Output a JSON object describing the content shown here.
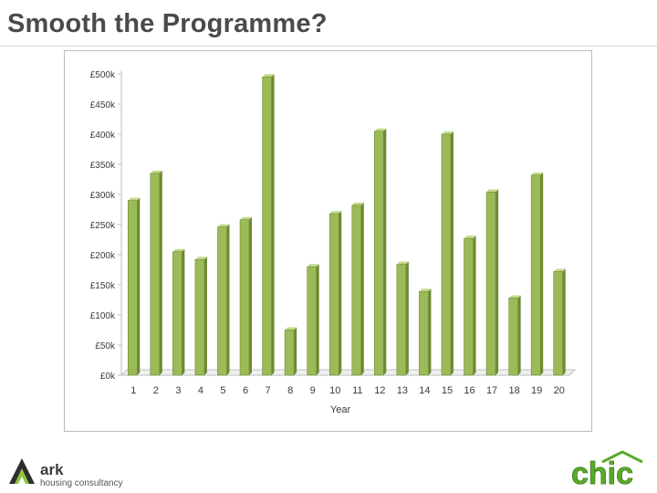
{
  "slide": {
    "title": "Smooth the Programme?"
  },
  "logos": {
    "left_name": "ark",
    "left_tagline": "housing consultancy",
    "right_name": "chic"
  },
  "colors": {
    "bar": "#9bbb59",
    "bar_dark": "#6e8a32",
    "bar_top": "#c3d98b",
    "axis": "#bfbfbf",
    "text": "#3a3a3a",
    "logo_green": "#5aaa2a"
  },
  "chart_data": {
    "type": "bar",
    "title": "",
    "xlabel": "Year",
    "ylabel": "",
    "categories": [
      "1",
      "2",
      "3",
      "4",
      "5",
      "6",
      "7",
      "8",
      "9",
      "10",
      "11",
      "12",
      "13",
      "14",
      "15",
      "16",
      "17",
      "18",
      "19",
      "20"
    ],
    "values": [
      290,
      335,
      205,
      192,
      246,
      258,
      495,
      75,
      180,
      268,
      282,
      405,
      184,
      139,
      400,
      227,
      304,
      128,
      332,
      172
    ],
    "value_unit": "£k",
    "ylim": [
      0,
      500
    ],
    "yticks": [
      0,
      50,
      100,
      150,
      200,
      250,
      300,
      350,
      400,
      450,
      500
    ],
    "ytick_labels": [
      "£0k",
      "£50k",
      "£100k",
      "£150k",
      "£200k",
      "£250k",
      "£300k",
      "£350k",
      "£400k",
      "£450k",
      "£500k"
    ],
    "grid": false,
    "legend": "none",
    "style": "3d-column"
  }
}
